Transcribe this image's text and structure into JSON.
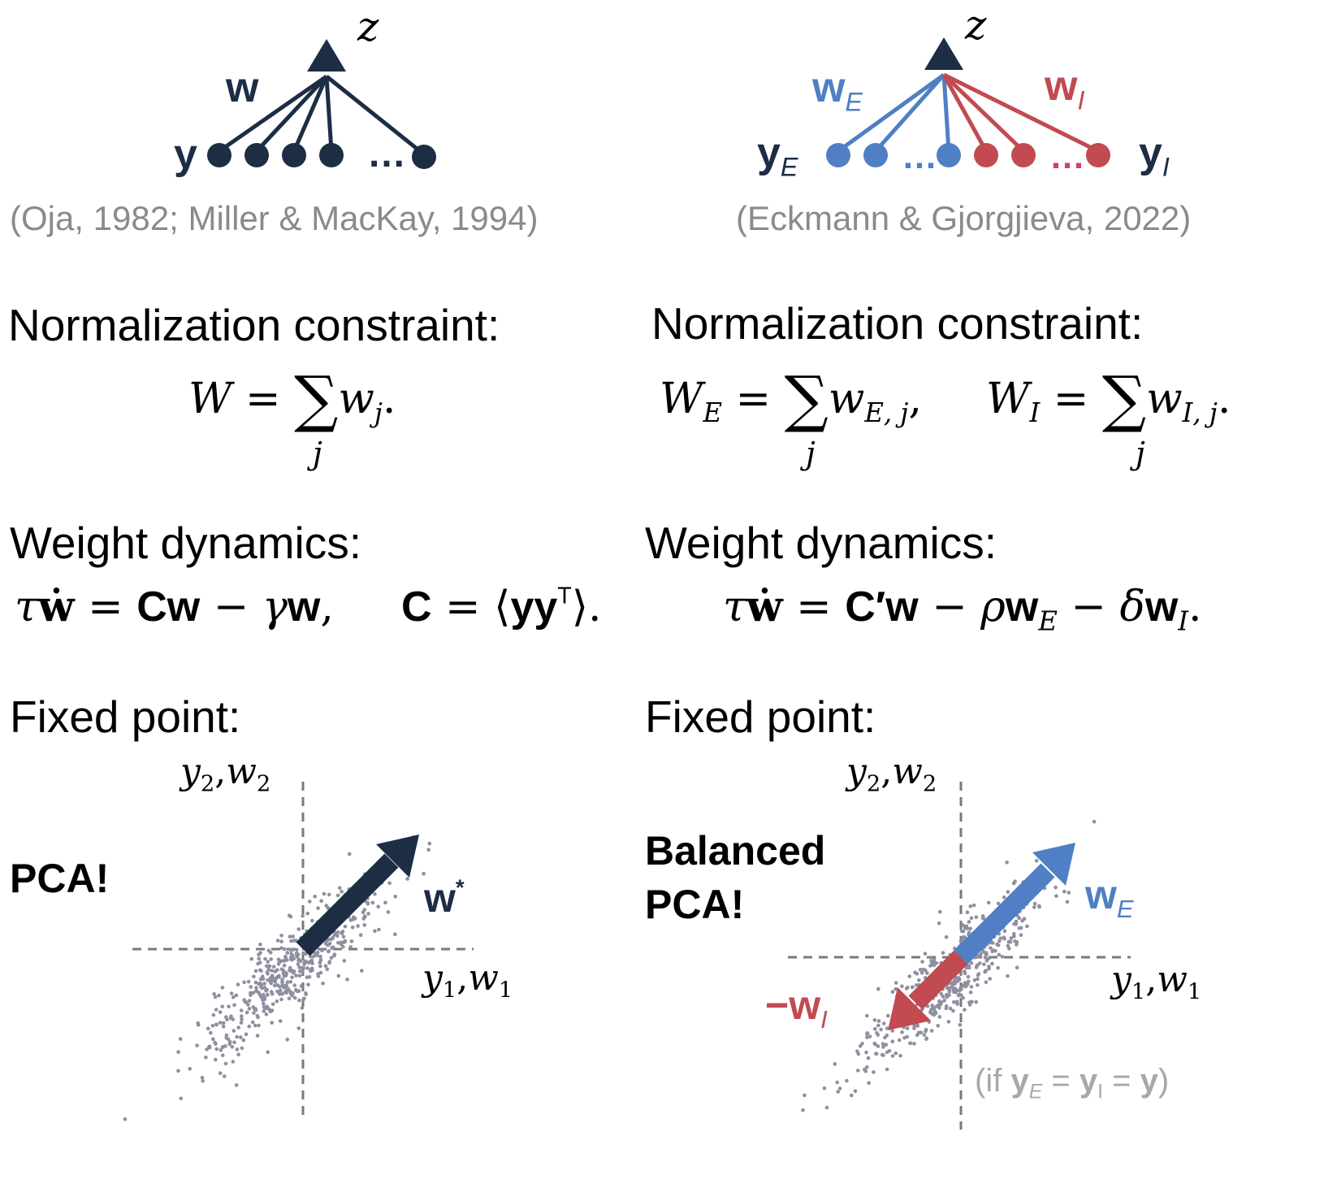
{
  "left": {
    "output_label": "z",
    "weight_label": "w",
    "input_label": "y",
    "ellipsis": "…",
    "citation": "(Oja, 1982; Miller & MacKay, 1994)",
    "constraint_heading": "Normalization constraint:",
    "constraint_lhs": "W",
    "constraint_eq": "=",
    "constraint_sum": "∑",
    "constraint_sum_index": "j",
    "constraint_term": "w",
    "constraint_term_sub": "j",
    "constraint_end": ".",
    "dynamics_heading": "Weight dynamics:",
    "dynamics_tau": "τ",
    "dynamics_wdot": "ẇ",
    "dynamics_eq1": "=",
    "dynamics_Cw": "Cw",
    "dynamics_minus": "−",
    "dynamics_gamma": "γ",
    "dynamics_w": "w",
    "dynamics_comma": ",",
    "dynamics_C": "C",
    "dynamics_eq2": "=",
    "dynamics_langle": "⟨",
    "dynamics_yy": "yy",
    "dynamics_T": "T",
    "dynamics_rangle": "⟩.",
    "fixed_heading": "Fixed point:",
    "result_label": "PCA!",
    "axis_y2": "y",
    "axis_y2_sub": "2",
    "axis_w2": "w",
    "axis_w2_sub": "2",
    "axis_y1": "y",
    "axis_y1_sub": "1",
    "axis_w1": "w",
    "axis_w1_sub": "1",
    "vector_label": "w",
    "vector_sup": "*"
  },
  "right": {
    "output_label": "z",
    "exc_weight_label": "w",
    "exc_weight_sub": "E",
    "inh_weight_label": "w",
    "inh_weight_sub": "I",
    "exc_input_label": "y",
    "exc_input_sub": "E",
    "inh_input_label": "y",
    "inh_input_sub": "I",
    "exc_ellipsis": "…",
    "inh_ellipsis": "…",
    "citation": "(Eckmann & Gjorgjieva, 2022)",
    "constraint_heading": "Normalization constraint:",
    "c1_lhs": "W",
    "c1_lhs_sub": "E",
    "c1_eq": "=",
    "c1_sum": "∑",
    "c1_sum_index": "j",
    "c1_term": "w",
    "c1_term_sub": "E, j",
    "c1_end": ",",
    "c2_lhs": "W",
    "c2_lhs_sub": "I",
    "c2_eq": "=",
    "c2_sum": "∑",
    "c2_sum_index": "j",
    "c2_term": "w",
    "c2_term_sub": "I, j",
    "c2_end": ".",
    "dynamics_heading": "Weight dynamics:",
    "dynamics_tau": "τ",
    "dynamics_wdot": "ẇ",
    "dynamics_eq": "=",
    "dynamics_Cprime": "C′w",
    "dynamics_minus1": "−",
    "dynamics_rho": "ρ",
    "dynamics_wE": "w",
    "dynamics_wE_sub": "E",
    "dynamics_minus2": "−",
    "dynamics_delta": "δ",
    "dynamics_wI": "w",
    "dynamics_wI_sub": "I",
    "dynamics_end": ".",
    "fixed_heading": "Fixed point:",
    "result_line1": "Balanced",
    "result_line2": "PCA!",
    "axis_y2": "y",
    "axis_y2_sub": "2",
    "axis_w2": "w",
    "axis_w2_sub": "2",
    "axis_y1": "y",
    "axis_y1_sub": "1",
    "axis_w1": "w",
    "axis_w1_sub": "1",
    "exc_vector_label": "w",
    "exc_vector_sub": "E",
    "inh_vector_minus": "−",
    "inh_vector_label": "w",
    "inh_vector_sub": "I",
    "condition_open": "(if ",
    "condition_yE": "y",
    "condition_yE_sub": "E",
    "condition_eq1": " = ",
    "condition_yI": "y",
    "condition_yI_sub": "I",
    "condition_eq2": " = ",
    "condition_y": "y",
    "condition_close": ")"
  },
  "colors": {
    "navy": "#1c2d44",
    "excitatory_blue": "#4f7fc4",
    "inhibitory_red": "#c24a51",
    "ellipsis_magenta": "#d63a7a",
    "citation_gray": "#8a8a8a",
    "scatter_gray": "#8e8fa0"
  }
}
